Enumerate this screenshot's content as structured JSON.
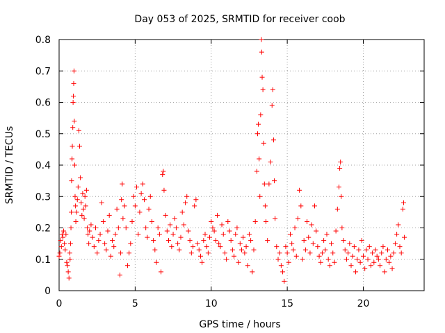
{
  "chart_data": {
    "type": "scatter",
    "title": "Day 053 of 2025, SRMTID for receiver coob",
    "xlabel": "GPS time / hours",
    "ylabel": "SRMTID / TECUs",
    "xlim": [
      0,
      24
    ],
    "ylim": [
      0,
      0.8
    ],
    "xticks": [
      0,
      5,
      10,
      15,
      20
    ],
    "yticks": [
      0,
      0.1,
      0.2,
      0.3,
      0.4,
      0.5,
      0.6,
      0.7,
      0.8
    ],
    "xtick_labels": [
      "0",
      "5",
      "10",
      "15",
      "20"
    ],
    "ytick_labels": [
      "0",
      "0.1",
      "0.2",
      "0.3",
      "0.4",
      "0.5",
      "0.6",
      "0.7",
      "0.8"
    ],
    "grid": true,
    "marker": "+",
    "color": "#ff0000",
    "series": [
      {
        "name": "SRMTID",
        "points": [
          [
            0.0,
            0.11
          ],
          [
            0.05,
            0.12
          ],
          [
            0.1,
            0.16
          ],
          [
            0.15,
            0.14
          ],
          [
            0.2,
            0.18
          ],
          [
            0.25,
            0.17
          ],
          [
            0.3,
            0.19
          ],
          [
            0.35,
            0.15
          ],
          [
            0.4,
            0.13
          ],
          [
            0.45,
            0.18
          ],
          [
            0.5,
            0.09
          ],
          [
            0.55,
            0.08
          ],
          [
            0.6,
            0.06
          ],
          [
            0.65,
            0.04
          ],
          [
            0.7,
            0.12
          ],
          [
            0.72,
            0.1
          ],
          [
            0.75,
            0.15
          ],
          [
            0.78,
            0.2
          ],
          [
            0.8,
            0.25
          ],
          [
            0.82,
            0.35
          ],
          [
            0.85,
            0.42
          ],
          [
            0.87,
            0.46
          ],
          [
            0.9,
            0.52
          ],
          [
            0.92,
            0.6
          ],
          [
            0.94,
            0.62
          ],
          [
            0.96,
            0.66
          ],
          [
            0.98,
            0.7
          ],
          [
            1.0,
            0.54
          ],
          [
            1.02,
            0.4
          ],
          [
            1.05,
            0.3
          ],
          [
            1.08,
            0.27
          ],
          [
            1.1,
            0.22
          ],
          [
            1.15,
            0.25
          ],
          [
            1.2,
            0.29
          ],
          [
            1.25,
            0.33
          ],
          [
            1.3,
            0.51
          ],
          [
            1.35,
            0.46
          ],
          [
            1.4,
            0.36
          ],
          [
            1.45,
            0.28
          ],
          [
            1.5,
            0.24
          ],
          [
            1.55,
            0.31
          ],
          [
            1.6,
            0.26
          ],
          [
            1.65,
            0.23
          ],
          [
            1.7,
            0.3
          ],
          [
            1.75,
            0.27
          ],
          [
            1.8,
            0.32
          ],
          [
            1.85,
            0.2
          ],
          [
            1.9,
            0.18
          ],
          [
            1.95,
            0.15
          ],
          [
            2.0,
            0.19
          ],
          [
            2.1,
            0.21
          ],
          [
            2.2,
            0.17
          ],
          [
            2.3,
            0.14
          ],
          [
            2.4,
            0.2
          ],
          [
            2.5,
            0.12
          ],
          [
            2.6,
            0.16
          ],
          [
            2.7,
            0.18
          ],
          [
            2.8,
            0.28
          ],
          [
            2.9,
            0.22
          ],
          [
            3.0,
            0.15
          ],
          [
            3.1,
            0.13
          ],
          [
            3.2,
            0.19
          ],
          [
            3.3,
            0.24
          ],
          [
            3.4,
            0.11
          ],
          [
            3.5,
            0.16
          ],
          [
            3.6,
            0.14
          ],
          [
            3.7,
            0.18
          ],
          [
            3.8,
            0.26
          ],
          [
            3.9,
            0.2
          ],
          [
            4.0,
            0.05
          ],
          [
            4.05,
            0.12
          ],
          [
            4.1,
            0.29
          ],
          [
            4.15,
            0.34
          ],
          [
            4.2,
            0.23
          ],
          [
            4.3,
            0.27
          ],
          [
            4.4,
            0.2
          ],
          [
            4.5,
            0.08
          ],
          [
            4.6,
            0.12
          ],
          [
            4.7,
            0.15
          ],
          [
            4.8,
            0.22
          ],
          [
            4.9,
            0.3
          ],
          [
            5.0,
            0.27
          ],
          [
            5.1,
            0.33
          ],
          [
            5.2,
            0.18
          ],
          [
            5.3,
            0.25
          ],
          [
            5.4,
            0.31
          ],
          [
            5.5,
            0.34
          ],
          [
            5.6,
            0.29
          ],
          [
            5.7,
            0.2
          ],
          [
            5.8,
            0.17
          ],
          [
            5.9,
            0.26
          ],
          [
            6.0,
            0.3
          ],
          [
            6.1,
            0.22
          ],
          [
            6.2,
            0.16
          ],
          [
            6.3,
            0.13
          ],
          [
            6.4,
            0.09
          ],
          [
            6.5,
            0.2
          ],
          [
            6.6,
            0.18
          ],
          [
            6.7,
            0.06
          ],
          [
            6.8,
            0.37
          ],
          [
            6.85,
            0.38
          ],
          [
            6.9,
            0.32
          ],
          [
            7.0,
            0.24
          ],
          [
            7.1,
            0.19
          ],
          [
            7.2,
            0.16
          ],
          [
            7.3,
            0.21
          ],
          [
            7.4,
            0.14
          ],
          [
            7.5,
            0.18
          ],
          [
            7.6,
            0.23
          ],
          [
            7.7,
            0.2
          ],
          [
            7.8,
            0.15
          ],
          [
            7.9,
            0.13
          ],
          [
            8.0,
            0.17
          ],
          [
            8.1,
            0.25
          ],
          [
            8.2,
            0.21
          ],
          [
            8.3,
            0.28
          ],
          [
            8.4,
            0.3
          ],
          [
            8.5,
            0.19
          ],
          [
            8.6,
            0.16
          ],
          [
            8.7,
            0.12
          ],
          [
            8.8,
            0.14
          ],
          [
            8.9,
            0.27
          ],
          [
            9.0,
            0.29
          ],
          [
            9.1,
            0.15
          ],
          [
            9.2,
            0.13
          ],
          [
            9.3,
            0.11
          ],
          [
            9.4,
            0.09
          ],
          [
            9.5,
            0.16
          ],
          [
            9.6,
            0.18
          ],
          [
            9.7,
            0.14
          ],
          [
            9.8,
            0.12
          ],
          [
            9.9,
            0.17
          ],
          [
            10.0,
            0.22
          ],
          [
            10.1,
            0.2
          ],
          [
            10.2,
            0.19
          ],
          [
            10.3,
            0.16
          ],
          [
            10.4,
            0.24
          ],
          [
            10.5,
            0.15
          ],
          [
            10.6,
            0.14
          ],
          [
            10.7,
            0.21
          ],
          [
            10.8,
            0.18
          ],
          [
            10.9,
            0.12
          ],
          [
            11.0,
            0.1
          ],
          [
            11.1,
            0.22
          ],
          [
            11.2,
            0.19
          ],
          [
            11.3,
            0.16
          ],
          [
            11.4,
            0.13
          ],
          [
            11.5,
            0.11
          ],
          [
            11.6,
            0.18
          ],
          [
            11.7,
            0.2
          ],
          [
            11.8,
            0.09
          ],
          [
            11.9,
            0.15
          ],
          [
            12.0,
            0.13
          ],
          [
            12.1,
            0.17
          ],
          [
            12.2,
            0.12
          ],
          [
            12.3,
            0.14
          ],
          [
            12.4,
            0.08
          ],
          [
            12.5,
            0.18
          ],
          [
            12.6,
            0.16
          ],
          [
            12.7,
            0.06
          ],
          [
            12.8,
            0.13
          ],
          [
            12.9,
            0.22
          ],
          [
            13.0,
            0.38
          ],
          [
            13.05,
            0.5
          ],
          [
            13.1,
            0.53
          ],
          [
            13.15,
            0.42
          ],
          [
            13.2,
            0.3
          ],
          [
            13.25,
            0.56
          ],
          [
            13.3,
            0.8
          ],
          [
            13.32,
            0.76
          ],
          [
            13.35,
            0.68
          ],
          [
            13.4,
            0.64
          ],
          [
            13.45,
            0.47
          ],
          [
            13.5,
            0.34
          ],
          [
            13.55,
            0.27
          ],
          [
            13.6,
            0.22
          ],
          [
            13.7,
            0.16
          ],
          [
            13.8,
            0.34
          ],
          [
            13.9,
            0.41
          ],
          [
            14.0,
            0.59
          ],
          [
            14.05,
            0.64
          ],
          [
            14.1,
            0.48
          ],
          [
            14.15,
            0.35
          ],
          [
            14.2,
            0.23
          ],
          [
            14.3,
            0.14
          ],
          [
            14.4,
            0.1
          ],
          [
            14.5,
            0.12
          ],
          [
            14.6,
            0.08
          ],
          [
            14.7,
            0.06
          ],
          [
            14.8,
            0.03
          ],
          [
            14.9,
            0.14
          ],
          [
            15.0,
            0.12
          ],
          [
            15.1,
            0.09
          ],
          [
            15.2,
            0.18
          ],
          [
            15.3,
            0.15
          ],
          [
            15.4,
            0.13
          ],
          [
            15.5,
            0.2
          ],
          [
            15.6,
            0.11
          ],
          [
            15.7,
            0.23
          ],
          [
            15.8,
            0.32
          ],
          [
            15.9,
            0.27
          ],
          [
            16.0,
            0.1
          ],
          [
            16.1,
            0.16
          ],
          [
            16.2,
            0.13
          ],
          [
            16.3,
            0.22
          ],
          [
            16.4,
            0.17
          ],
          [
            16.5,
            0.12
          ],
          [
            16.6,
            0.21
          ],
          [
            16.7,
            0.15
          ],
          [
            16.8,
            0.27
          ],
          [
            16.9,
            0.19
          ],
          [
            17.0,
            0.14
          ],
          [
            17.1,
            0.11
          ],
          [
            17.2,
            0.09
          ],
          [
            17.3,
            0.12
          ],
          [
            17.4,
            0.16
          ],
          [
            17.5,
            0.13
          ],
          [
            17.6,
            0.18
          ],
          [
            17.7,
            0.1
          ],
          [
            17.8,
            0.08
          ],
          [
            17.9,
            0.15
          ],
          [
            18.0,
            0.12
          ],
          [
            18.1,
            0.09
          ],
          [
            18.2,
            0.19
          ],
          [
            18.3,
            0.26
          ],
          [
            18.4,
            0.33
          ],
          [
            18.45,
            0.39
          ],
          [
            18.5,
            0.41
          ],
          [
            18.55,
            0.3
          ],
          [
            18.6,
            0.2
          ],
          [
            18.7,
            0.16
          ],
          [
            18.8,
            0.13
          ],
          [
            18.9,
            0.1
          ],
          [
            19.0,
            0.12
          ],
          [
            19.1,
            0.15
          ],
          [
            19.2,
            0.08
          ],
          [
            19.3,
            0.11
          ],
          [
            19.4,
            0.14
          ],
          [
            19.5,
            0.06
          ],
          [
            19.6,
            0.1
          ],
          [
            19.7,
            0.13
          ],
          [
            19.8,
            0.09
          ],
          [
            19.9,
            0.16
          ],
          [
            20.0,
            0.11
          ],
          [
            20.1,
            0.07
          ],
          [
            20.2,
            0.13
          ],
          [
            20.3,
            0.1
          ],
          [
            20.4,
            0.14
          ],
          [
            20.5,
            0.08
          ],
          [
            20.6,
            0.12
          ],
          [
            20.7,
            0.09
          ],
          [
            20.8,
            0.13
          ],
          [
            20.9,
            0.11
          ],
          [
            21.0,
            0.1
          ],
          [
            21.1,
            0.08
          ],
          [
            21.2,
            0.12
          ],
          [
            21.3,
            0.14
          ],
          [
            21.4,
            0.06
          ],
          [
            21.5,
            0.1
          ],
          [
            21.6,
            0.13
          ],
          [
            21.7,
            0.09
          ],
          [
            21.8,
            0.11
          ],
          [
            21.9,
            0.07
          ],
          [
            22.0,
            0.12
          ],
          [
            22.1,
            0.15
          ],
          [
            22.2,
            0.18
          ],
          [
            22.3,
            0.21
          ],
          [
            22.4,
            0.14
          ],
          [
            22.5,
            0.12
          ],
          [
            22.6,
            0.26
          ],
          [
            22.65,
            0.28
          ],
          [
            22.7,
            0.17
          ]
        ]
      }
    ]
  }
}
